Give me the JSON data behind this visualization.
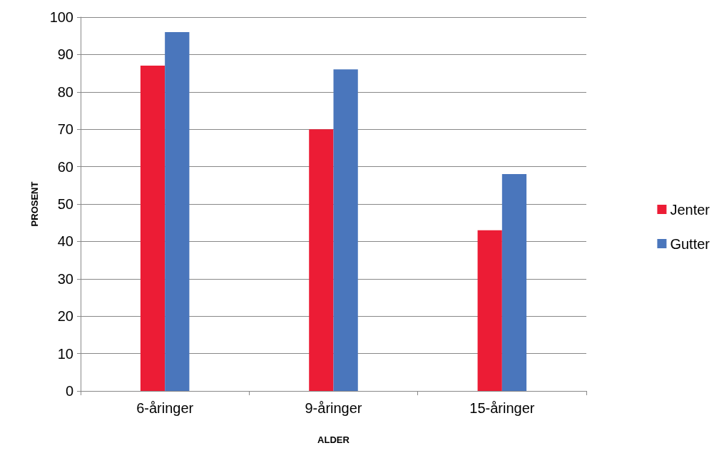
{
  "chart_data": {
    "type": "bar",
    "xlabel": "ALDER",
    "ylabel": "PROSENT",
    "categories": [
      "6-åringer",
      "9-åringer",
      "15-åringer"
    ],
    "series": [
      {
        "name": "Jenter",
        "color": "#ec1c35",
        "values": [
          87,
          70,
          43
        ]
      },
      {
        "name": "Gutter",
        "color": "#4a76bc",
        "values": [
          96,
          86,
          58
        ]
      }
    ],
    "ylim": [
      0,
      100
    ],
    "yticks": [
      0,
      10,
      20,
      30,
      40,
      50,
      60,
      70,
      80,
      90,
      100
    ],
    "grid": "y",
    "legend": "right"
  }
}
